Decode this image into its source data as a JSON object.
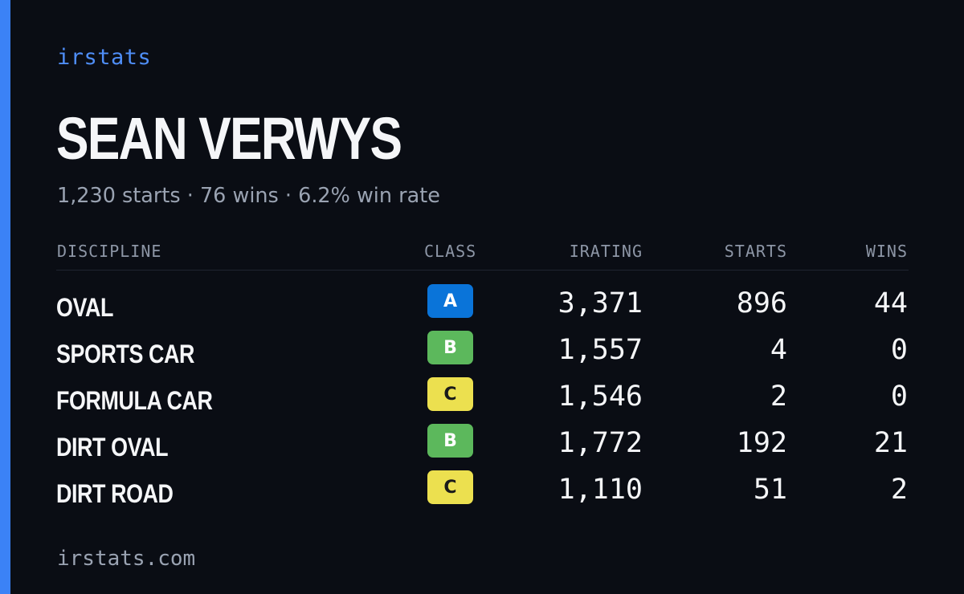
{
  "brand": "irstats",
  "driver": {
    "name": "SEAN VERWYS",
    "summary": "1,230 starts · 76 wins · 6.2% win rate"
  },
  "table": {
    "headers": {
      "discipline": "DISCIPLINE",
      "class": "CLASS",
      "irating": "IRATING",
      "starts": "STARTS",
      "wins": "WINS"
    },
    "rows": [
      {
        "discipline": "OVAL",
        "class": "A",
        "class_color": "#0a74d9",
        "class_text_color": "#ffffff",
        "irating": "3,371",
        "starts": "896",
        "wins": "44"
      },
      {
        "discipline": "SPORTS CAR",
        "class": "B",
        "class_color": "#5cb85c",
        "class_text_color": "#ffffff",
        "irating": "1,557",
        "starts": "4",
        "wins": "0"
      },
      {
        "discipline": "FORMULA CAR",
        "class": "C",
        "class_color": "#ece04f",
        "class_text_color": "#1a1a1a",
        "irating": "1,546",
        "starts": "2",
        "wins": "0"
      },
      {
        "discipline": "DIRT OVAL",
        "class": "B",
        "class_color": "#5cb85c",
        "class_text_color": "#ffffff",
        "irating": "1,772",
        "starts": "192",
        "wins": "21"
      },
      {
        "discipline": "DIRT ROAD",
        "class": "C",
        "class_color": "#ece04f",
        "class_text_color": "#1a1a1a",
        "irating": "1,110",
        "starts": "51",
        "wins": "2"
      }
    ]
  },
  "footer": "irstats.com",
  "colors": {
    "accent": "#3b82f6",
    "background": "#0a0d14"
  }
}
